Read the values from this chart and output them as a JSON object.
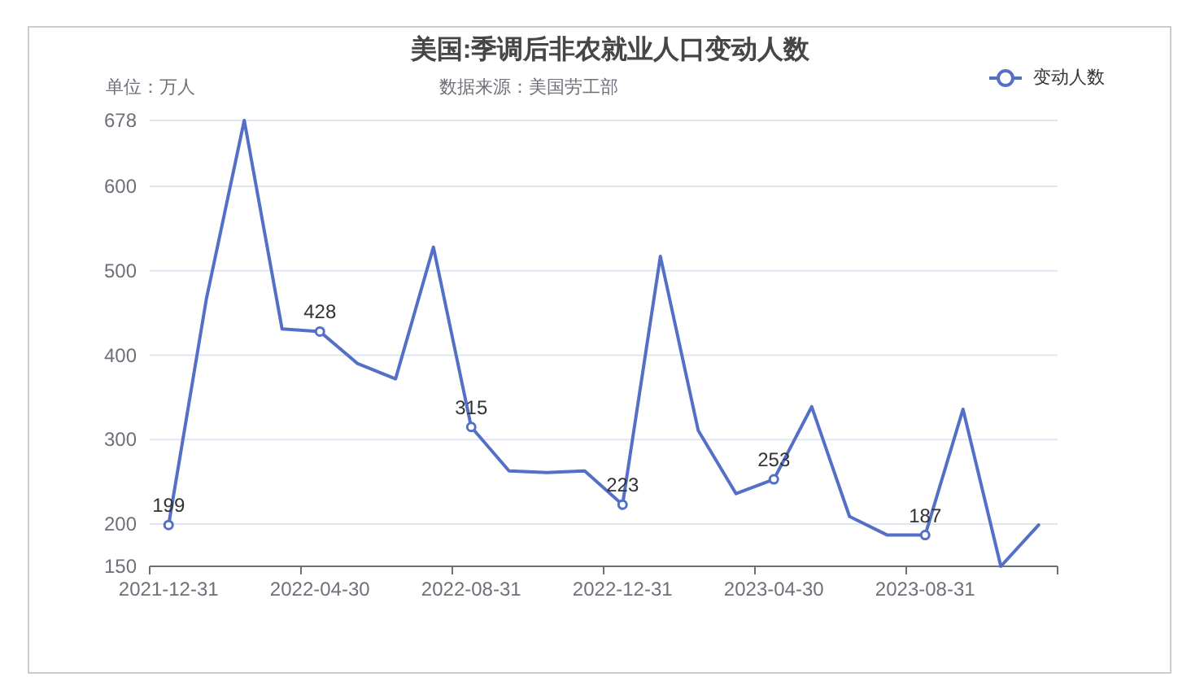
{
  "chart_data": {
    "type": "line",
    "title": "美国:季调后非农就业人口变动人数",
    "ylabel": "单位：万人",
    "annotations": [
      "数据来源：美国劳工部"
    ],
    "categories": [
      "2021-12-31",
      null,
      null,
      null,
      "2022-04-30",
      null,
      null,
      null,
      "2022-08-31",
      null,
      null,
      null,
      "2022-12-31",
      null,
      null,
      null,
      "2023-04-30",
      null,
      null,
      null,
      "2023-08-31",
      null,
      null,
      null
    ],
    "series": [
      {
        "name": "变动人数",
        "color": "#5470c6",
        "marker": "none",
        "values": [
          199,
          467,
          678,
          431,
          428,
          390,
          372,
          528,
          315,
          263,
          261,
          263,
          223,
          517,
          311,
          236,
          253,
          339,
          209,
          187,
          187,
          336,
          150,
          199
        ]
      },
      {
        "type": "scatter",
        "color": "#5470c6",
        "marker": "circle",
        "values": [
          199,
          null,
          null,
          null,
          428,
          null,
          null,
          null,
          315,
          null,
          null,
          null,
          223,
          null,
          null,
          null,
          253,
          null,
          null,
          null,
          187,
          null,
          null,
          null
        ],
        "value_labels": [
          "199",
          null,
          null,
          null,
          "428",
          null,
          null,
          null,
          "315",
          null,
          null,
          null,
          "223",
          null,
          null,
          null,
          "253",
          null,
          null,
          null,
          "187",
          null,
          null,
          null
        ]
      }
    ],
    "ylim": [
      150,
      678
    ],
    "yticks": [
      150,
      200,
      300,
      400,
      500,
      600,
      678
    ],
    "grid": "y",
    "legend": "top right"
  }
}
